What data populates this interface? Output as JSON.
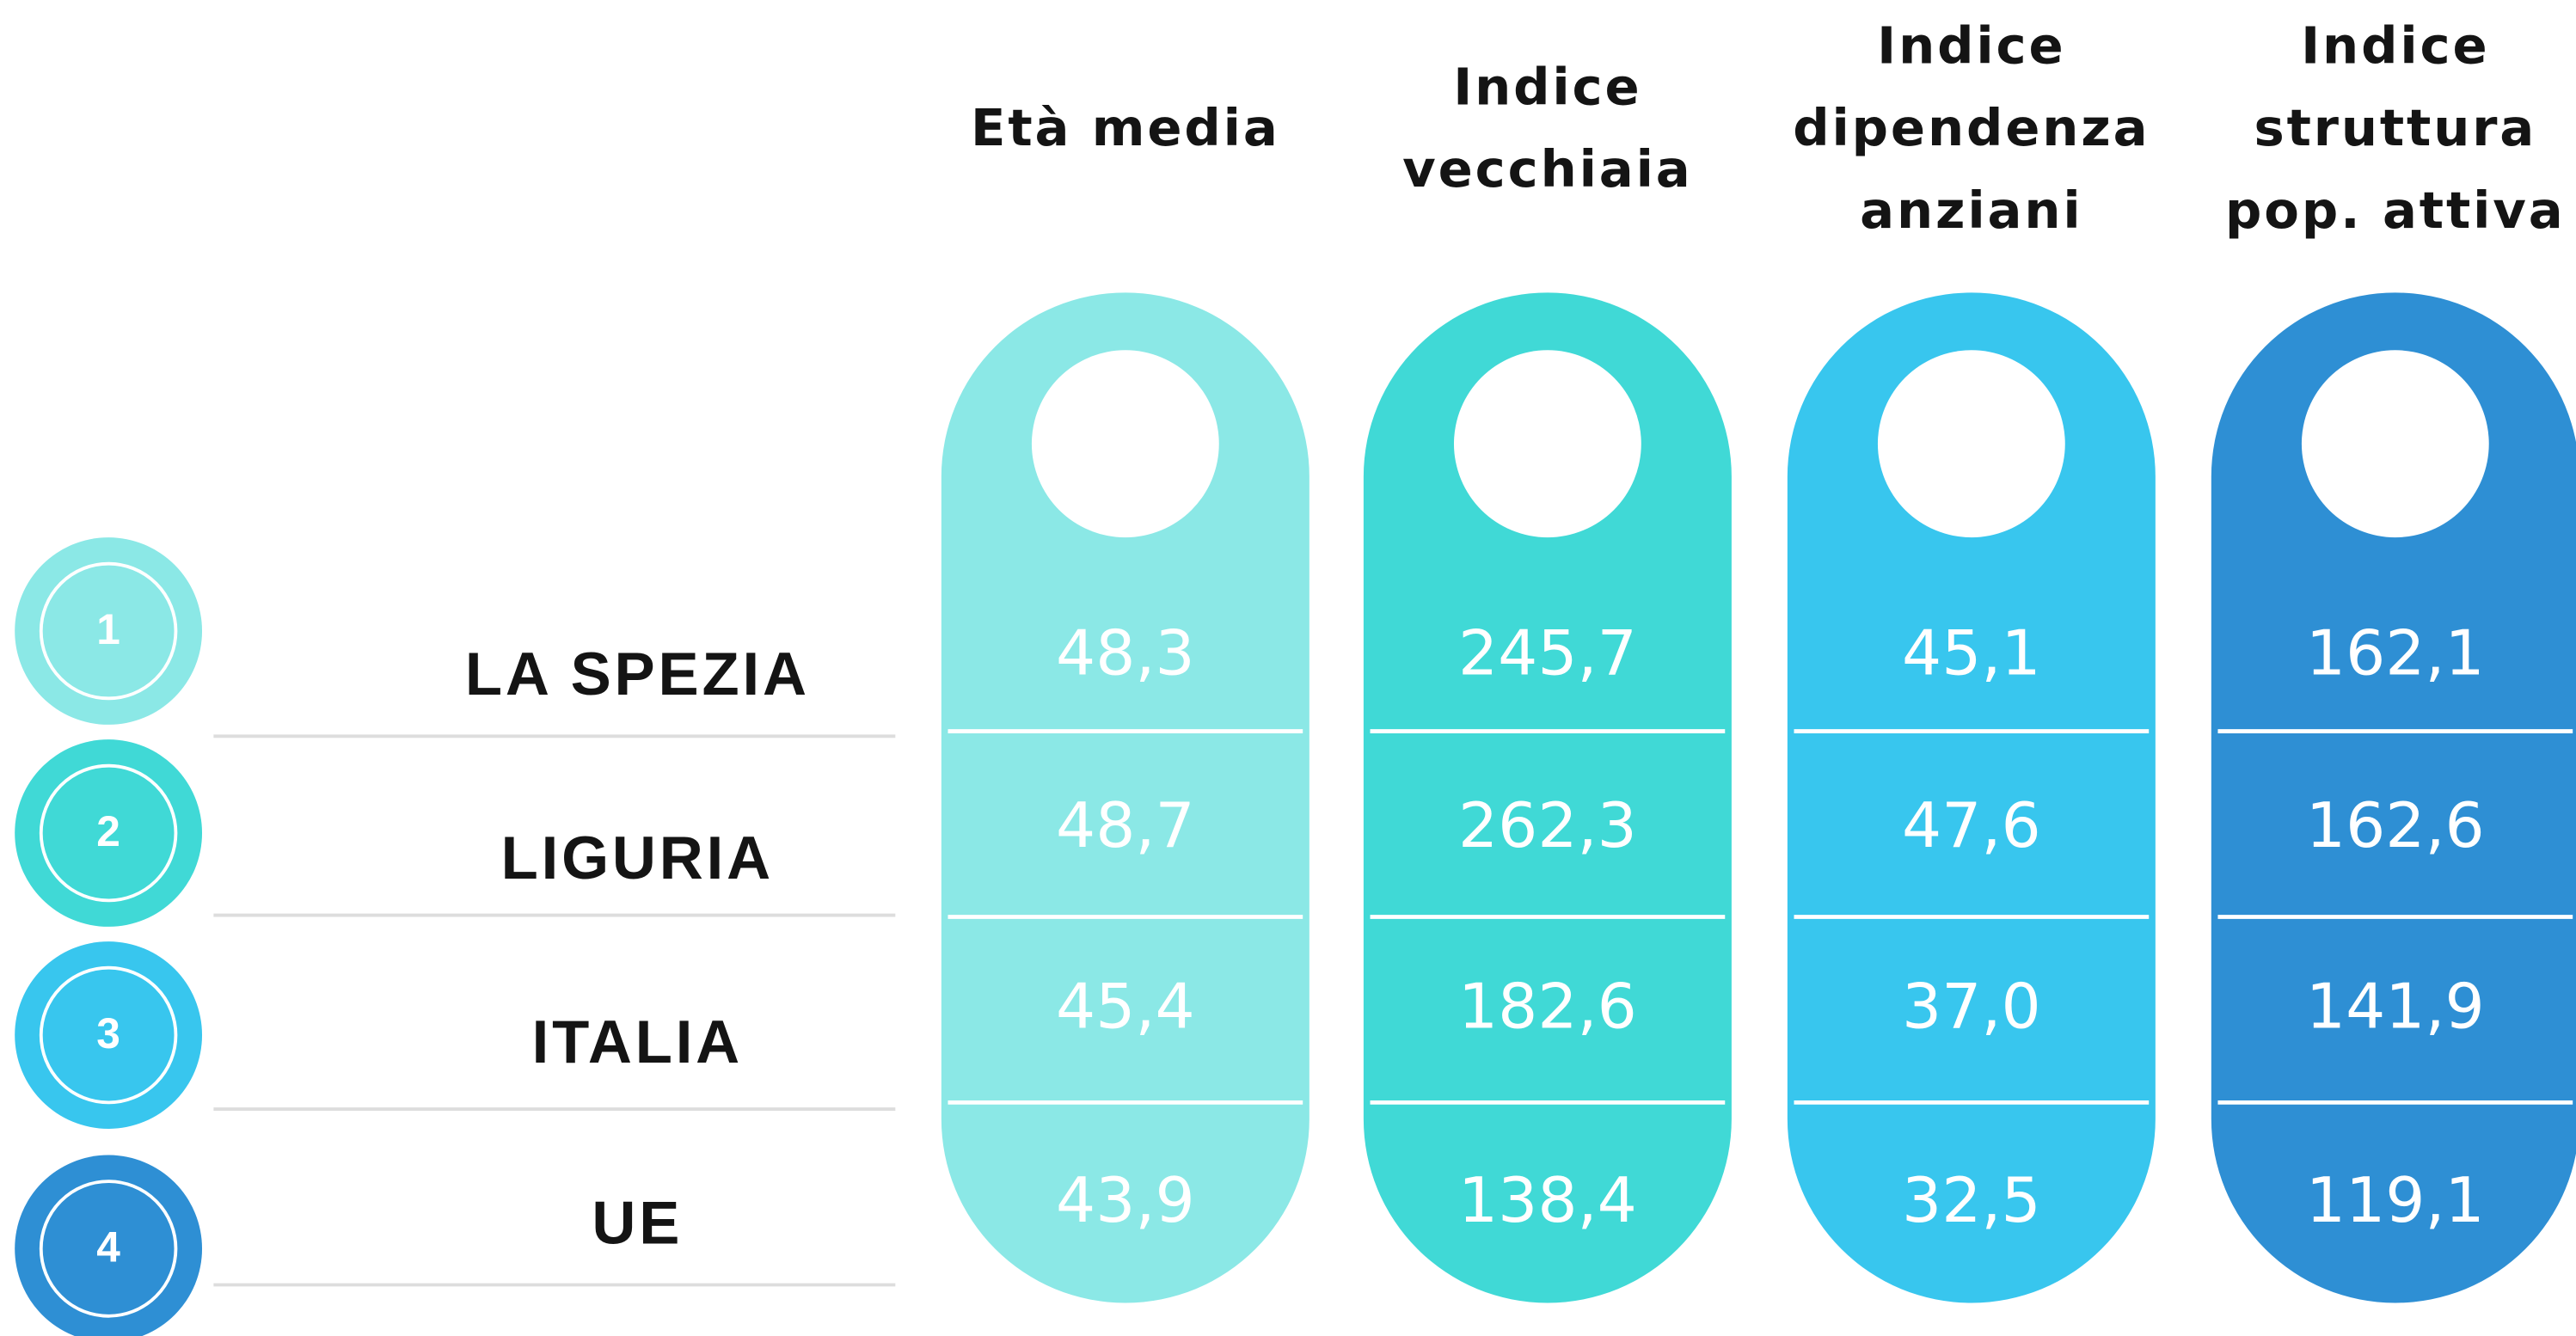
{
  "table": {
    "columns": [
      {
        "header_lines": [
          "Età media"
        ],
        "color": "#8be8e6"
      },
      {
        "header_lines": [
          "Indice",
          "vecchiaia"
        ],
        "color": "#40d9d6"
      },
      {
        "header_lines": [
          "Indice",
          "dipendenza",
          "anziani"
        ],
        "color": "#38c6ee"
      },
      {
        "header_lines": [
          "Indice",
          "struttura",
          "pop. attiva"
        ],
        "color": "#2e8fd4"
      }
    ],
    "rows": [
      {
        "number": "1",
        "label": "LA SPEZIA",
        "values": [
          "48,3",
          "245,7",
          "45,1",
          "162,1"
        ]
      },
      {
        "number": "2",
        "label": "LIGURIA",
        "values": [
          "48,7",
          "262,3",
          "47,6",
          "162,6"
        ]
      },
      {
        "number": "3",
        "label": "ITALIA",
        "values": [
          "45,4",
          "182,6",
          "37,0",
          "141,9"
        ]
      },
      {
        "number": "4",
        "label": "UE",
        "values": [
          "43,9",
          "138,4",
          "32,5",
          "119,1"
        ]
      }
    ]
  }
}
